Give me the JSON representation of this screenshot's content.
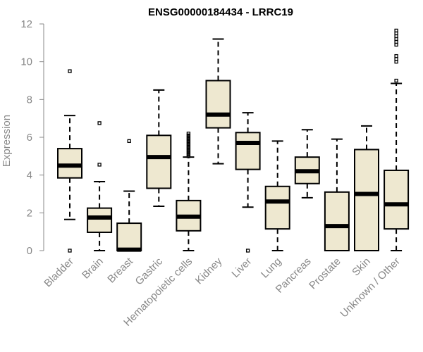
{
  "chart_data": {
    "type": "boxplot",
    "title": "ENSG00000184434 - LRRC19",
    "ylabel": "Expression",
    "xlabel": "",
    "ylim": [
      0,
      12
    ],
    "yticks": [
      0,
      2,
      4,
      6,
      8,
      10,
      12
    ],
    "grid": false,
    "box_fill": "#EEE8D0",
    "categories": [
      "Bladder",
      "Brain",
      "Breast",
      "Gastric",
      "Hematopoietic cells",
      "Kidney",
      "Liver",
      "Lung",
      "Pancreas",
      "Prostate",
      "Skin",
      "Unknown / Other"
    ],
    "boxes": [
      {
        "min": 1.65,
        "q1": 3.85,
        "median": 4.5,
        "q3": 5.4,
        "max": 7.15,
        "outliers": [
          0.0,
          9.5
        ]
      },
      {
        "min": 0.0,
        "q1": 0.97,
        "median": 1.75,
        "q3": 2.25,
        "max": 3.65,
        "outliers": [
          4.55,
          6.75
        ]
      },
      {
        "min": 0.0,
        "q1": 0.0,
        "median": 0.05,
        "q3": 1.45,
        "max": 3.15,
        "outliers": [
          5.8
        ]
      },
      {
        "min": 2.35,
        "q1": 3.3,
        "median": 4.95,
        "q3": 6.1,
        "max": 8.5,
        "outliers": []
      },
      {
        "min": 0.0,
        "q1": 1.05,
        "median": 1.8,
        "q3": 2.65,
        "max": 4.95,
        "outliers": [
          5.0,
          5.1,
          5.2,
          5.3,
          5.4,
          5.5,
          5.6,
          5.7,
          5.8,
          5.9,
          6.0,
          6.1,
          6.2
        ]
      },
      {
        "min": 4.6,
        "q1": 6.5,
        "median": 7.2,
        "q3": 9.0,
        "max": 11.2,
        "outliers": []
      },
      {
        "min": 2.3,
        "q1": 4.3,
        "median": 5.7,
        "q3": 6.25,
        "max": 7.3,
        "outliers": [
          0.0
        ]
      },
      {
        "min": 0.0,
        "q1": 1.15,
        "median": 2.6,
        "q3": 3.4,
        "max": 5.8,
        "outliers": []
      },
      {
        "min": 2.8,
        "q1": 3.55,
        "median": 4.2,
        "q3": 4.95,
        "max": 6.4,
        "outliers": []
      },
      {
        "min": 0.0,
        "q1": 0.0,
        "median": 1.3,
        "q3": 3.1,
        "max": 5.9,
        "outliers": []
      },
      {
        "min": 0.0,
        "q1": 0.0,
        "median": 3.0,
        "q3": 5.35,
        "max": 6.6,
        "outliers": []
      },
      {
        "min": 0.0,
        "q1": 1.15,
        "median": 2.45,
        "q3": 4.25,
        "max": 8.85,
        "outliers": [
          9.0,
          10.0,
          10.15,
          10.3,
          10.9,
          11.05,
          11.2,
          11.35,
          11.5,
          11.65
        ]
      }
    ]
  }
}
